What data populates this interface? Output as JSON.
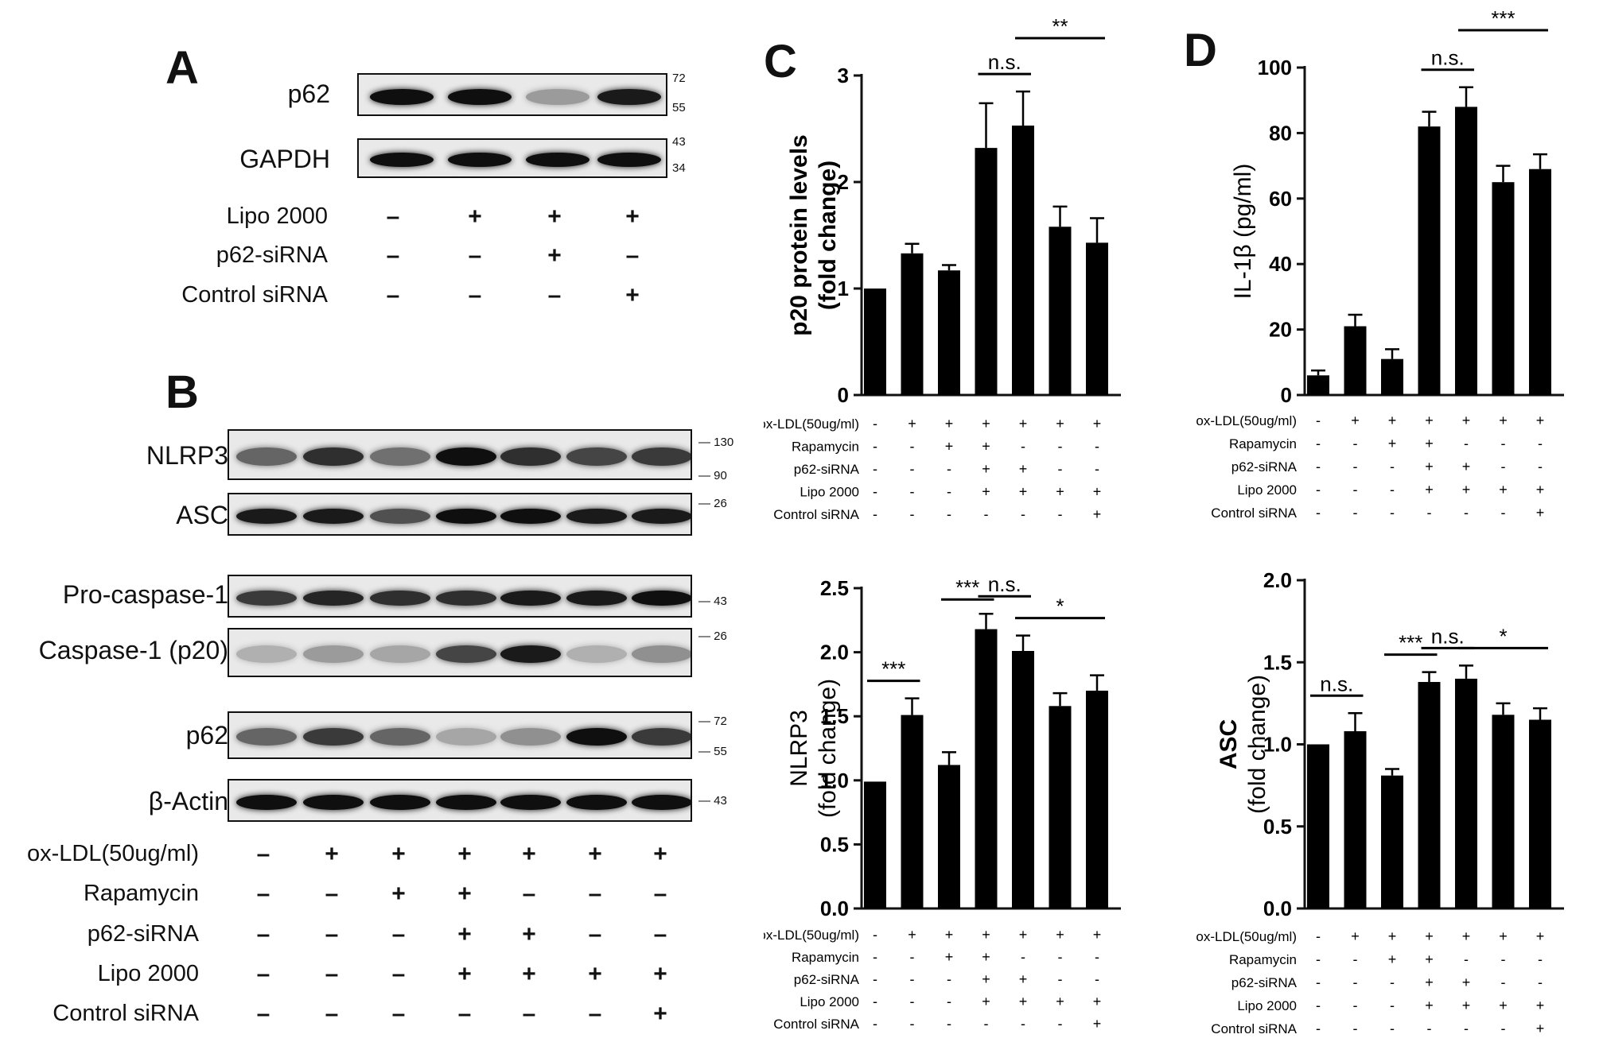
{
  "panel_letters": [
    "A",
    "B",
    "C",
    "D"
  ],
  "panelA": {
    "blots": [
      {
        "label": "p62",
        "markers": [
          "72",
          "55"
        ],
        "intensity": [
          1,
          1,
          0.35,
          0.95
        ]
      },
      {
        "label": "GAPDH",
        "markers": [
          "43",
          "34"
        ],
        "intensity": [
          1,
          1,
          1,
          1
        ]
      }
    ],
    "treatments": [
      {
        "label": "Lipo 2000",
        "signs": [
          "-",
          "+",
          "+",
          "+"
        ]
      },
      {
        "label": "p62-siRNA",
        "signs": [
          "-",
          "-",
          "+",
          "-"
        ]
      },
      {
        "label": "Control siRNA",
        "signs": [
          "-",
          "-",
          "-",
          "+"
        ]
      }
    ]
  },
  "panelB": {
    "blots": [
      {
        "label": "NLRP3",
        "markers": [
          "130",
          "90"
        ],
        "intensity": [
          0.6,
          0.85,
          0.55,
          1,
          0.85,
          0.75,
          0.8
        ]
      },
      {
        "label": "ASC",
        "markers": [
          "26"
        ],
        "intensity": [
          0.95,
          0.95,
          0.7,
          1,
          1,
          0.95,
          0.95
        ]
      },
      {
        "label": "Pro-caspase-1",
        "markers": [
          "43"
        ],
        "intensity": [
          0.8,
          0.9,
          0.85,
          0.85,
          0.95,
          0.95,
          1
        ]
      },
      {
        "label": "Caspase-1 (p20)",
        "markers": [
          "26"
        ],
        "intensity": [
          0.25,
          0.35,
          0.3,
          0.75,
          0.95,
          0.25,
          0.4
        ]
      },
      {
        "label": "p62",
        "markers": [
          "72",
          "55"
        ],
        "intensity": [
          0.6,
          0.8,
          0.6,
          0.3,
          0.4,
          1,
          0.8
        ]
      },
      {
        "label": "β-Actin",
        "markers": [
          "43"
        ],
        "intensity": [
          1,
          1,
          1,
          1,
          1,
          1,
          1
        ]
      }
    ],
    "treatments": [
      {
        "label": "ox-LDL(50ug/ml)",
        "signs": [
          "-",
          "+",
          "+",
          "+",
          "+",
          "+",
          "+"
        ]
      },
      {
        "label": "Rapamycin",
        "signs": [
          "-",
          "-",
          "+",
          "+",
          "-",
          "-",
          "-"
        ]
      },
      {
        "label": "p62-siRNA",
        "signs": [
          "-",
          "-",
          "-",
          "+",
          "+",
          "-",
          "-"
        ]
      },
      {
        "label": "Lipo 2000",
        "signs": [
          "-",
          "-",
          "-",
          "+",
          "+",
          "+",
          "+"
        ]
      },
      {
        "label": "Control siRNA",
        "signs": [
          "-",
          "-",
          "-",
          "-",
          "-",
          "-",
          "+"
        ]
      }
    ]
  },
  "treatment_table": [
    {
      "label": "ox-LDL(50ug/ml)",
      "signs": [
        "-",
        "+",
        "+",
        "+",
        "+",
        "+",
        "+"
      ]
    },
    {
      "label": "Rapamycin",
      "signs": [
        "-",
        "-",
        "+",
        "+",
        "-",
        "-",
        "-"
      ]
    },
    {
      "label": "p62-siRNA",
      "signs": [
        "-",
        "-",
        "-",
        "+",
        "+",
        "-",
        "-"
      ]
    },
    {
      "label": "Lipo 2000",
      "signs": [
        "-",
        "-",
        "-",
        "+",
        "+",
        "+",
        "+"
      ]
    },
    {
      "label": "Control siRNA",
      "signs": [
        "-",
        "-",
        "-",
        "-",
        "-",
        "-",
        "+"
      ]
    }
  ],
  "chart_data": [
    {
      "type": "bar",
      "title": "",
      "ylabel": "p20 protein levels (fold change)",
      "ylim": [
        0,
        3
      ],
      "yticks": [
        "0",
        "1",
        "2",
        "3"
      ],
      "values": [
        1.0,
        1.33,
        1.17,
        2.32,
        2.53,
        1.58,
        1.43
      ],
      "errors": [
        0,
        0.09,
        0.05,
        0.42,
        0.32,
        0.19,
        0.23
      ],
      "significance": [
        {
          "from": 3,
          "to": 4,
          "label": "n.s."
        },
        {
          "from": 4,
          "to": 6,
          "label": "**"
        }
      ]
    },
    {
      "type": "bar",
      "title": "",
      "ylabel": "IL-1β (pg/ml)",
      "ylim": [
        0,
        100
      ],
      "yticks": [
        "0",
        "20",
        "40",
        "60",
        "80",
        "100"
      ],
      "values": [
        6,
        21,
        11,
        82,
        88,
        65,
        69
      ],
      "errors": [
        1.5,
        3.5,
        3,
        4.5,
        6,
        5,
        4.5
      ],
      "significance": [
        {
          "from": 3,
          "to": 4,
          "label": "n.s."
        },
        {
          "from": 4,
          "to": 6,
          "label": "***"
        }
      ]
    },
    {
      "type": "bar",
      "title": "",
      "ylabel": "NLRP3 (fold change)",
      "ylim": [
        0,
        2.5
      ],
      "yticks": [
        "0.0",
        "0.5",
        "1.0",
        "1.5",
        "2.0",
        "2.5"
      ],
      "values": [
        0.99,
        1.51,
        1.12,
        2.18,
        2.01,
        1.58,
        1.7
      ],
      "errors": [
        0,
        0.13,
        0.1,
        0.12,
        0.12,
        0.1,
        0.12
      ],
      "significance": [
        {
          "from": 0,
          "to": 1,
          "label": "***"
        },
        {
          "from": 2,
          "to": 3,
          "label": "***"
        },
        {
          "from": 3,
          "to": 4,
          "label": "n.s."
        },
        {
          "from": 4,
          "to": 6,
          "label": "*"
        }
      ]
    },
    {
      "type": "bar",
      "title": "",
      "ylabel": "ASC (fold change)",
      "ylim": [
        0,
        2.0
      ],
      "yticks": [
        "0.0",
        "0.5",
        "1.0",
        "1.5",
        "2.0"
      ],
      "values": [
        1.0,
        1.08,
        0.81,
        1.38,
        1.4,
        1.18,
        1.15
      ],
      "errors": [
        0,
        0.11,
        0.04,
        0.06,
        0.08,
        0.07,
        0.07
      ],
      "significance": [
        {
          "from": 0,
          "to": 1,
          "label": "n.s."
        },
        {
          "from": 2,
          "to": 3,
          "label": "***"
        },
        {
          "from": 3,
          "to": 4,
          "label": "n.s."
        },
        {
          "from": 4,
          "to": 6,
          "label": "*"
        }
      ]
    }
  ]
}
